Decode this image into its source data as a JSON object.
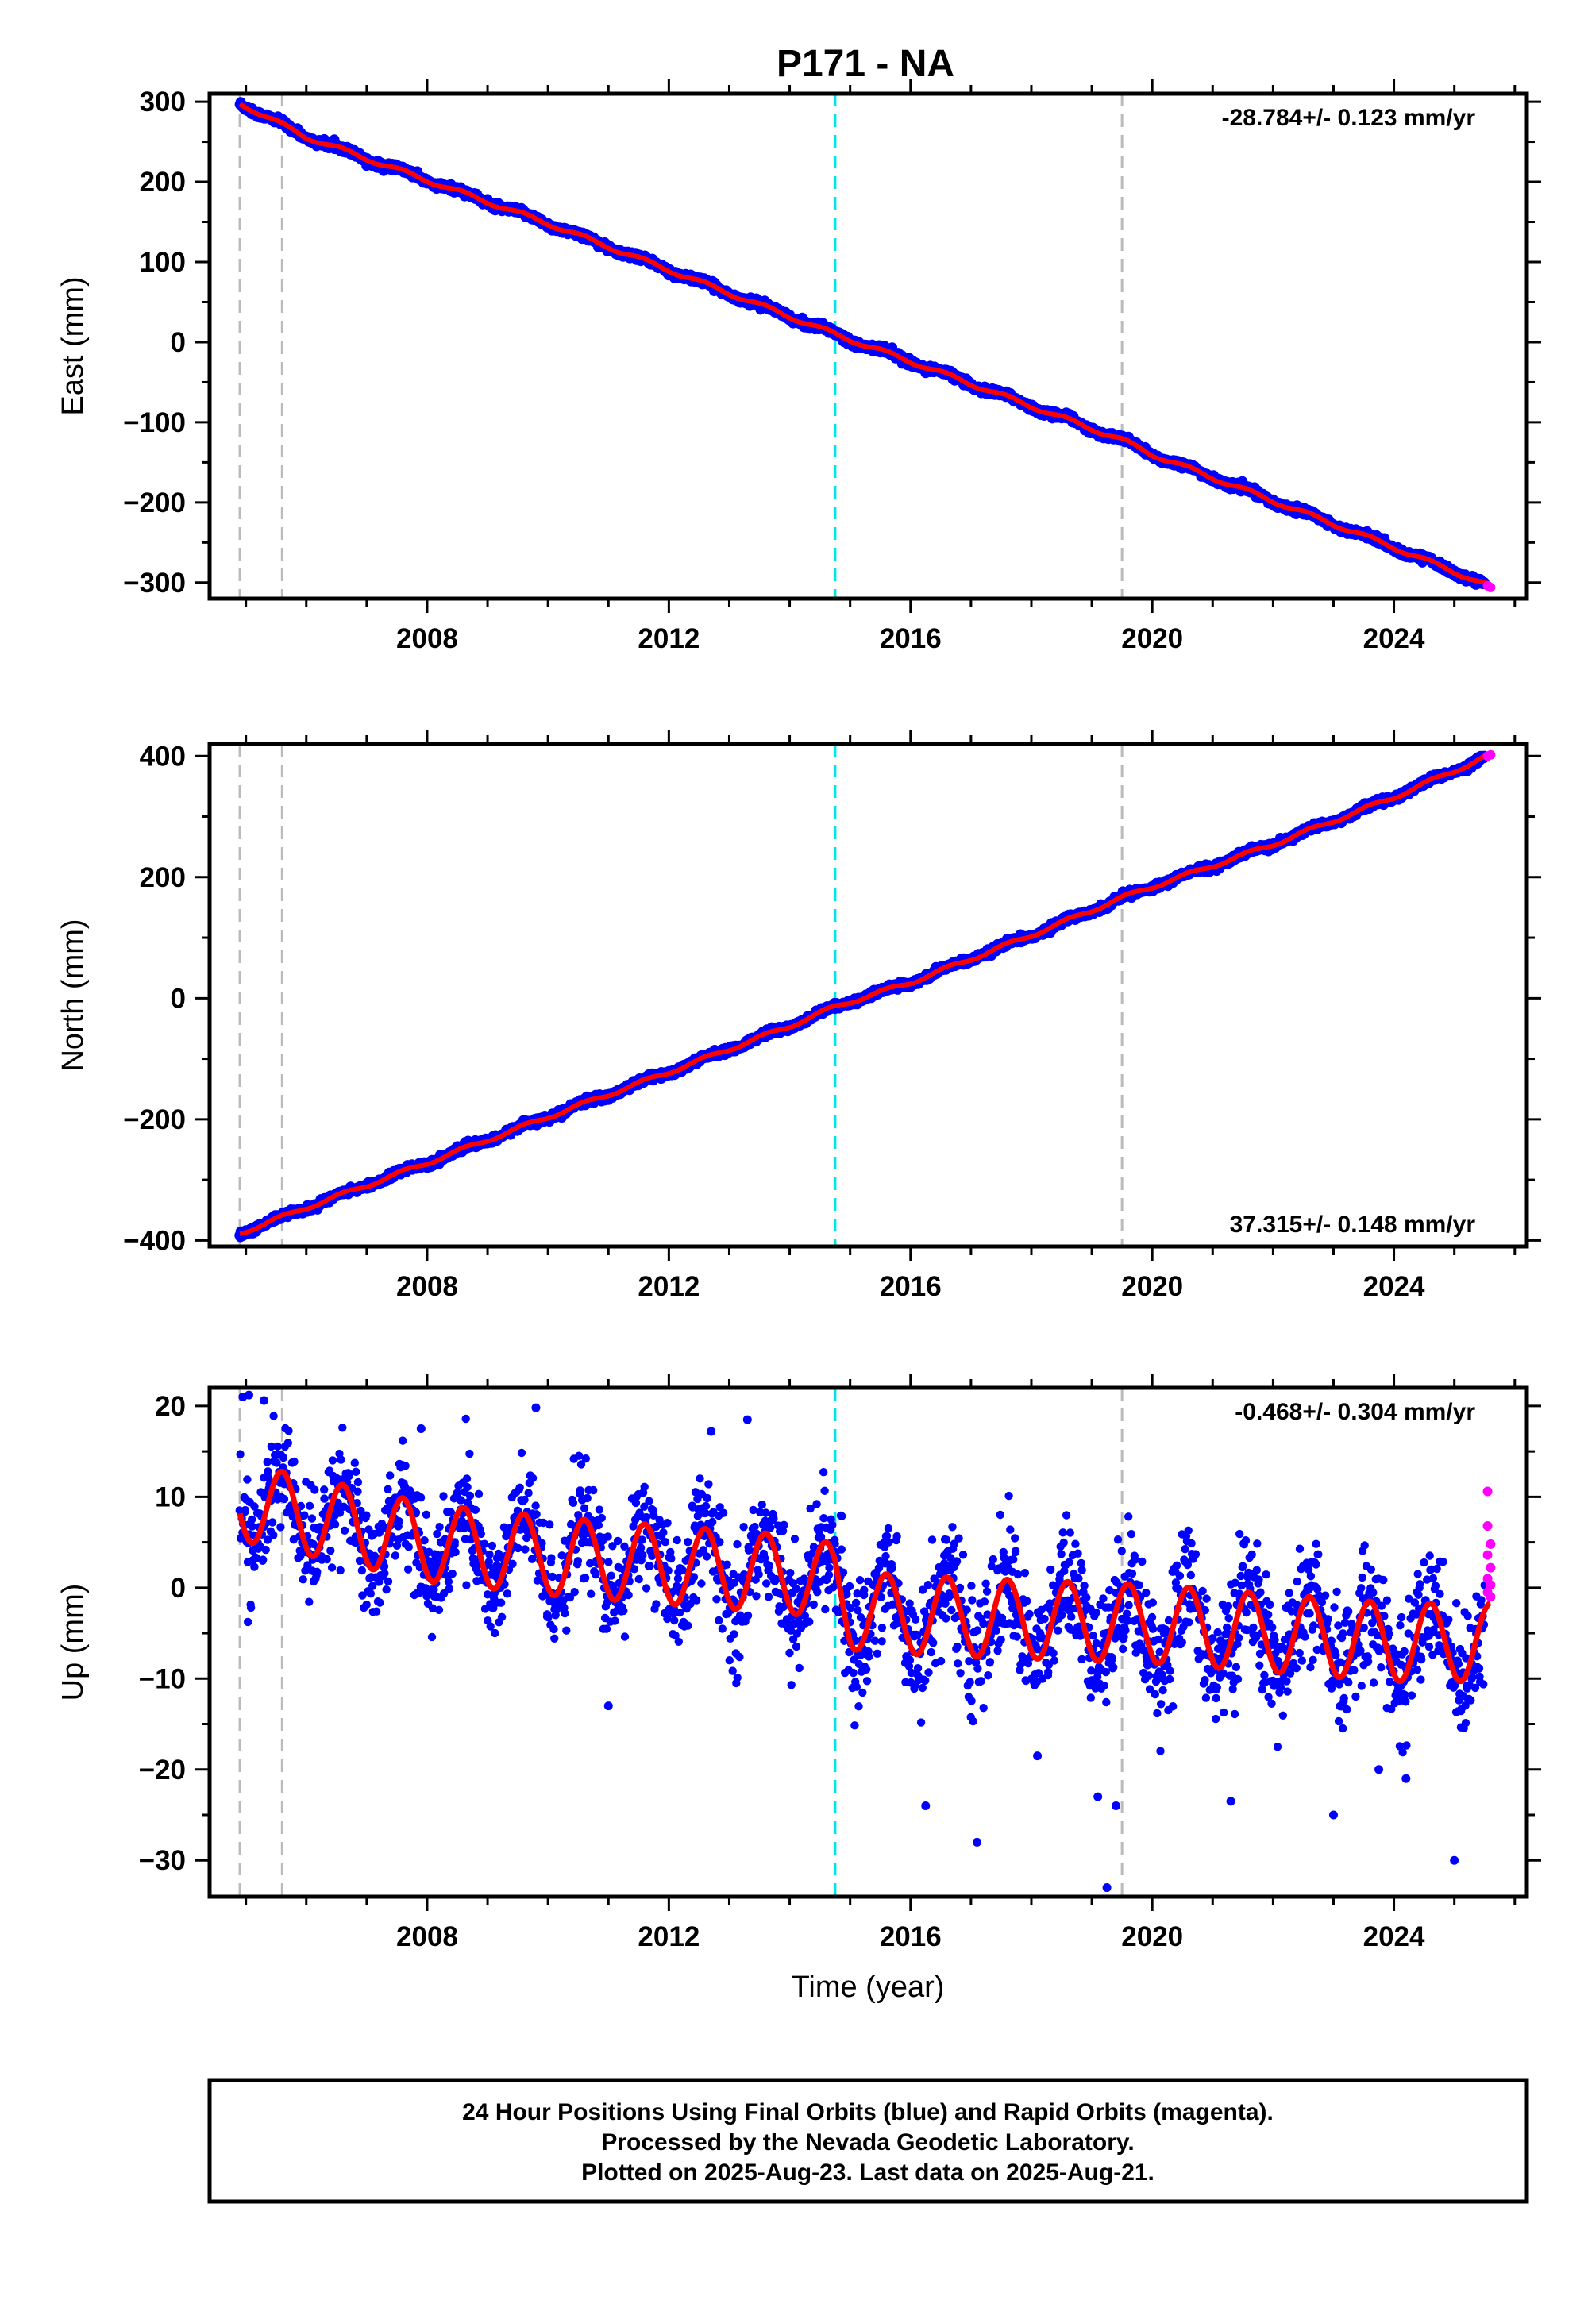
{
  "chart_data": {
    "type": "scatter",
    "title": "P171 - NA",
    "xlabel": "Time (year)",
    "xlim": [
      2004.4,
      2026.2
    ],
    "x_ticks": [
      2008,
      2012,
      2016,
      2020,
      2024
    ],
    "event_lines": {
      "gray_dashed": [
        2004.9,
        2005.6,
        2019.5
      ],
      "cyan_dashed": [
        2014.75
      ]
    },
    "series_colors": {
      "final_orbits": "#0000ff",
      "rapid_orbits": "#ff00ff",
      "model_fit": "#ff0000",
      "gray_line": "#bbbbbb",
      "cyan_line": "#00e5e5"
    },
    "panels": [
      {
        "component": "east",
        "ylabel": "East (mm)",
        "ylim": [
          -320,
          310
        ],
        "y_ticks": [
          300,
          200,
          100,
          0,
          -100,
          -200,
          -300
        ],
        "y_tick_labels": [
          "300",
          "200",
          "100",
          "0",
          "−100",
          "−200",
          "−300"
        ],
        "rate_text": "-28.784+/- 0.123 mm/yr",
        "rate_position": "top-right",
        "rate_mm_per_yr": -28.784,
        "rate_sigma": 0.123,
        "fit_points": [
          [
            2004.9,
            298
          ],
          [
            2006,
            256
          ],
          [
            2008,
            202
          ],
          [
            2010,
            148
          ],
          [
            2012,
            90
          ],
          [
            2014,
            32
          ],
          [
            2014.75,
            10
          ],
          [
            2016,
            -24
          ],
          [
            2018,
            -80
          ],
          [
            2019.5,
            -122
          ],
          [
            2020,
            -140
          ],
          [
            2022,
            -198
          ],
          [
            2024,
            -256
          ],
          [
            2025.6,
            -305
          ]
        ],
        "seasonal_amplitude": 2.5,
        "scatter_sd": 2.0,
        "rapid_points": [
          [
            2025.55,
            -304
          ],
          [
            2025.6,
            -306
          ]
        ]
      },
      {
        "component": "north",
        "ylabel": "North (mm)",
        "ylim": [
          -410,
          420
        ],
        "y_ticks": [
          400,
          200,
          0,
          -200,
          -400
        ],
        "y_tick_labels": [
          "400",
          "200",
          "0",
          "−200",
          "−400"
        ],
        "rate_text": "37.315+/- 0.148 mm/yr",
        "rate_position": "bottom-right",
        "rate_mm_per_yr": 37.315,
        "rate_sigma": 0.148,
        "fit_points": [
          [
            2004.9,
            -388
          ],
          [
            2006,
            -346
          ],
          [
            2008,
            -272
          ],
          [
            2010,
            -196
          ],
          [
            2012,
            -122
          ],
          [
            2014,
            -46
          ],
          [
            2014.75,
            -14
          ],
          [
            2016,
            26
          ],
          [
            2018,
            104
          ],
          [
            2019.5,
            166
          ],
          [
            2020,
            184
          ],
          [
            2022,
            254
          ],
          [
            2024,
            332
          ],
          [
            2025.6,
            402
          ]
        ],
        "seasonal_amplitude": 3.0,
        "scatter_sd": 2.5,
        "rapid_points": [
          [
            2025.55,
            400
          ],
          [
            2025.6,
            402
          ]
        ]
      },
      {
        "component": "up",
        "ylabel": "Up (mm)",
        "ylim": [
          -34,
          22
        ],
        "y_ticks": [
          20,
          10,
          0,
          -10,
          -20,
          -30
        ],
        "y_tick_labels": [
          "20",
          "10",
          "0",
          "−10",
          "−20",
          "−30"
        ],
        "rate_text": "-0.468+/- 0.304 mm/yr",
        "rate_position": "top-right",
        "rate_mm_per_yr": -0.468,
        "rate_sigma": 0.304,
        "fit_points": [
          [
            2004.9,
            9.5
          ],
          [
            2008,
            5.0
          ],
          [
            2010,
            3.5
          ],
          [
            2012,
            2.5
          ],
          [
            2014,
            1.5
          ],
          [
            2014.75,
            0.5
          ],
          [
            2015,
            -2.5
          ],
          [
            2016,
            -3.0
          ],
          [
            2018,
            -3.5
          ],
          [
            2020,
            -4.0
          ],
          [
            2022,
            -5.0
          ],
          [
            2024,
            -6.0
          ],
          [
            2025.6,
            -6.0
          ]
        ],
        "seasonal_amplitude": 4.3,
        "scatter_sd": 3.0,
        "outliers": [
          [
            2004.95,
            21
          ],
          [
            2005.05,
            21.2
          ],
          [
            2005.3,
            20.6
          ],
          [
            2009.8,
            19.8
          ],
          [
            2013.3,
            18.5
          ],
          [
            2007.9,
            17.5
          ],
          [
            2012.7,
            17.2
          ],
          [
            2016.25,
            -24
          ],
          [
            2017.1,
            -28
          ],
          [
            2019.1,
            -23
          ],
          [
            2019.25,
            -33
          ],
          [
            2019.4,
            -24
          ],
          [
            2021.3,
            -23.5
          ],
          [
            2023.0,
            -25
          ],
          [
            2024.2,
            -21
          ],
          [
            2025.0,
            -30
          ],
          [
            2018.1,
            -18.5
          ],
          [
            2023.75,
            -20
          ],
          [
            2011.0,
            -13
          ]
        ],
        "rapid_points": [
          [
            2025.55,
            10.6
          ],
          [
            2025.55,
            6.8
          ],
          [
            2025.6,
            4.8
          ],
          [
            2025.55,
            3.6
          ],
          [
            2025.6,
            2.2
          ],
          [
            2025.55,
            1.0
          ],
          [
            2025.6,
            0.3
          ],
          [
            2025.55,
            -0.5
          ],
          [
            2025.6,
            -1.0
          ]
        ]
      }
    ]
  },
  "footer": {
    "line1": "24 Hour Positions Using Final Orbits (blue) and Rapid Orbits (magenta).",
    "line2": "Processed by the Nevada Geodetic Laboratory.",
    "line3": "Plotted on 2025-Aug-23. Last data on 2025-Aug-21."
  }
}
